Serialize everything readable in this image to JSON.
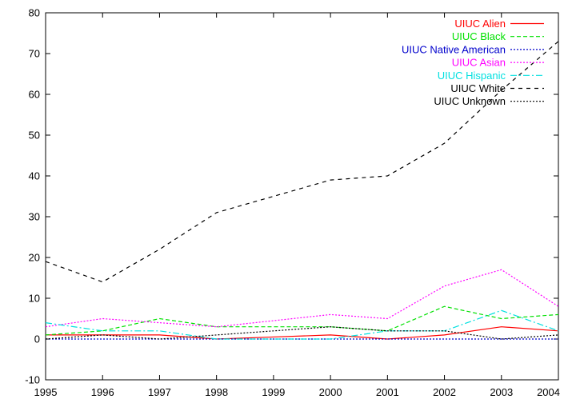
{
  "chart_data": {
    "type": "line",
    "title": "",
    "xlabel": "",
    "ylabel": "",
    "x": [
      1995,
      1996,
      1997,
      1998,
      1999,
      2000,
      2001,
      2002,
      2003,
      2004
    ],
    "xlim": [
      1995,
      2004
    ],
    "ylim": [
      -10,
      80
    ],
    "xticks": [
      "1995",
      "1996",
      "1997",
      "1998",
      "1999",
      "2000",
      "2001",
      "2002",
      "2003",
      "2004"
    ],
    "yticks": [
      "-10",
      "0",
      "10",
      "20",
      "30",
      "40",
      "50",
      "60",
      "70",
      "80"
    ],
    "grid": false,
    "legend_position": "top-right",
    "series": [
      {
        "name": "UIUC Alien",
        "color": "#ff0000",
        "dash": "solid",
        "values": [
          1,
          1,
          1,
          0,
          0.5,
          1,
          0,
          1,
          3,
          2
        ]
      },
      {
        "name": "UIUC Black",
        "color": "#00e000",
        "dash": "dashed",
        "values": [
          1,
          2,
          5,
          3,
          3,
          3,
          2,
          8,
          5,
          6
        ]
      },
      {
        "name": "UIUC Native American",
        "color": "#0000cc",
        "dash": "dotted",
        "values": [
          0,
          0,
          0,
          0,
          0,
          0,
          0,
          0,
          0,
          0
        ]
      },
      {
        "name": "UIUC Asian",
        "color": "#ff00ff",
        "dash": "dotted",
        "values": [
          3,
          5,
          4,
          3,
          4.5,
          6,
          5,
          13,
          17,
          8
        ]
      },
      {
        "name": "UIUC Hispanic",
        "color": "#00e0e0",
        "dash": "dashdot",
        "values": [
          4,
          2,
          2,
          0,
          0,
          0,
          2,
          2,
          7,
          2
        ]
      },
      {
        "name": "UIUC White",
        "color": "#000000",
        "dash": "longdash",
        "values": [
          19,
          14,
          22,
          31,
          35,
          39,
          40,
          48,
          61,
          73
        ]
      },
      {
        "name": "UIUC Unknown",
        "color": "#000000",
        "dash": "dotted",
        "values": [
          0,
          1,
          0,
          1,
          2,
          3,
          2,
          2,
          0,
          1
        ]
      }
    ]
  }
}
